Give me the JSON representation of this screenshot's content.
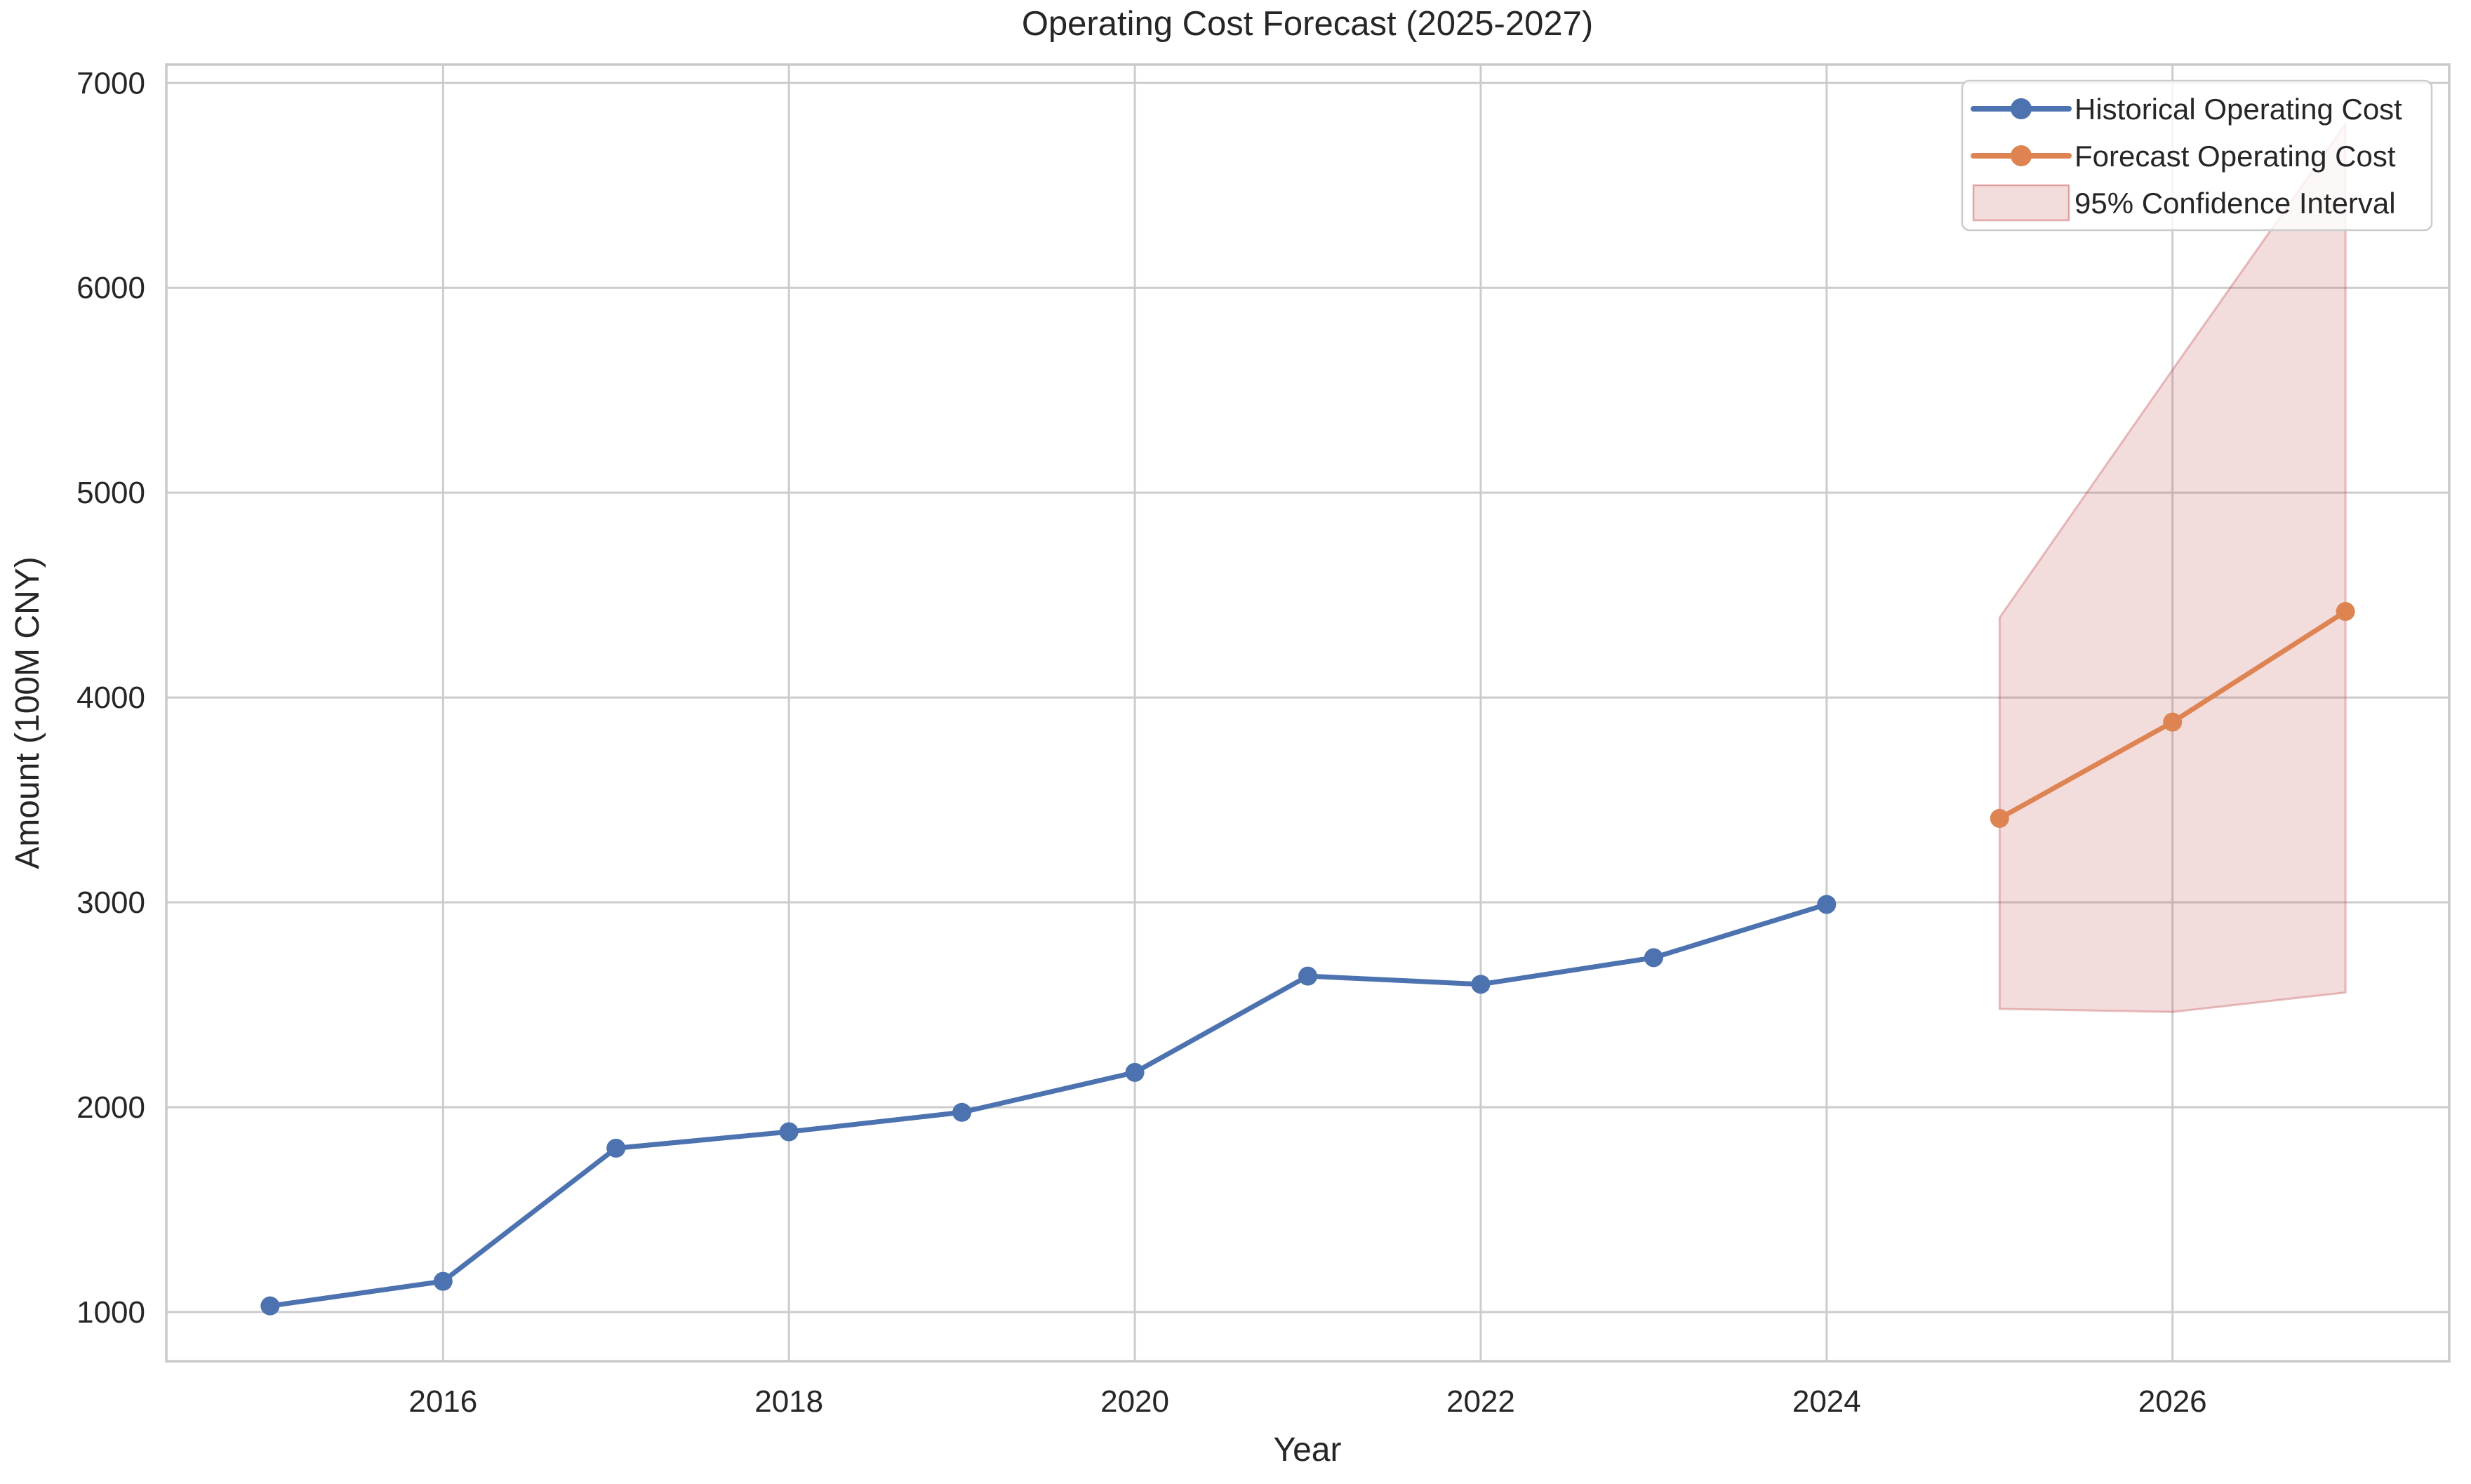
{
  "chart": {
    "title": "Operating Cost Forecast (2025-2027)",
    "xlabel": "Year",
    "ylabel": "Amount (100M CNY)"
  },
  "chart_data": {
    "type": "line",
    "title": "Operating Cost Forecast (2025-2027)",
    "xlabel": "Year",
    "ylabel": "Amount (100M CNY)",
    "xlim": [
      2014.4,
      2027.6
    ],
    "ylim": [
      760,
      7090
    ],
    "grid": true,
    "legend_position": "upper-right",
    "x_ticks": [
      2016,
      2018,
      2020,
      2022,
      2024,
      2026
    ],
    "x_tick_labels": [
      "2016",
      "2018",
      "2020",
      "2022",
      "2024",
      "2026"
    ],
    "y_ticks": [
      1000,
      2000,
      3000,
      4000,
      5000,
      6000,
      7000
    ],
    "y_tick_labels": [
      "1000",
      "2000",
      "3000",
      "4000",
      "5000",
      "6000",
      "7000"
    ],
    "series": [
      {
        "name": "Historical Operating Cost",
        "color": "#4C72B0",
        "marker": "circle",
        "x": [
          2015,
          2016,
          2017,
          2018,
          2019,
          2020,
          2021,
          2022,
          2023,
          2024
        ],
        "values": [
          1030,
          1150,
          1800,
          1880,
          1975,
          2170,
          2640,
          2600,
          2730,
          2990
        ]
      },
      {
        "name": "Forecast Operating Cost",
        "color": "#DD8452",
        "marker": "circle",
        "x": [
          2025,
          2026,
          2027
        ],
        "values": [
          3410,
          3880,
          4420
        ]
      }
    ],
    "confidence_band": {
      "name": "95% Confidence Interval",
      "color": "#C44E52",
      "fill_alpha": 0.2,
      "x": [
        2025,
        2026,
        2027
      ],
      "lower": [
        2480,
        2465,
        2560
      ],
      "upper": [
        4390,
        5600,
        6800
      ]
    },
    "colors": {
      "grid": "#CCCCCC",
      "spine": "#C9C9C9",
      "text": "#262626",
      "background": "#FFFFFF",
      "legend_border": "#CCCCCC",
      "legend_background": "rgba(255,255,255,0.8)"
    }
  }
}
